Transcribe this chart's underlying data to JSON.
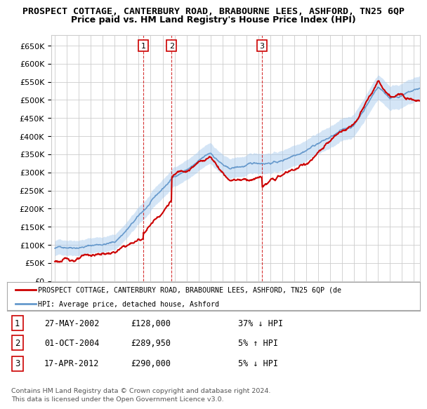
{
  "title": "PROSPECT COTTAGE, CANTERBURY ROAD, BRABOURNE LEES, ASHFORD, TN25 6QP",
  "subtitle": "Price paid vs. HM Land Registry's House Price Index (HPI)",
  "title_fontsize": 9.5,
  "subtitle_fontsize": 9,
  "ytick_values": [
    0,
    50000,
    100000,
    150000,
    200000,
    250000,
    300000,
    350000,
    400000,
    450000,
    500000,
    550000,
    600000,
    650000
  ],
  "ylim": [
    0,
    680000
  ],
  "xlim_start": 1994.7,
  "xlim_end": 2025.5,
  "background_color": "#ffffff",
  "grid_color": "#cccccc",
  "transactions": [
    {
      "num": 1,
      "date": "27-MAY-2002",
      "price": 128000,
      "price_str": "£128,000",
      "pct": "37%",
      "dir": "↓",
      "x": 2002.4
    },
    {
      "num": 2,
      "date": "01-OCT-2004",
      "price": 289950,
      "price_str": "£289,950",
      "pct": "5%",
      "dir": "↑",
      "x": 2004.75
    },
    {
      "num": 3,
      "date": "17-APR-2012",
      "price": 290000,
      "price_str": "£290,000",
      "pct": "5%",
      "dir": "↓",
      "x": 2012.3
    }
  ],
  "red_line_color": "#cc0000",
  "blue_line_color": "#6699cc",
  "blue_fill_color": "#aaccee",
  "legend_label_red": "PROSPECT COTTAGE, CANTERBURY ROAD, BRABOURNE LEES, ASHFORD, TN25 6QP (de",
  "legend_label_blue": "HPI: Average price, detached house, Ashford",
  "footer1": "Contains HM Land Registry data © Crown copyright and database right 2024.",
  "footer2": "This data is licensed under the Open Government Licence v3.0."
}
